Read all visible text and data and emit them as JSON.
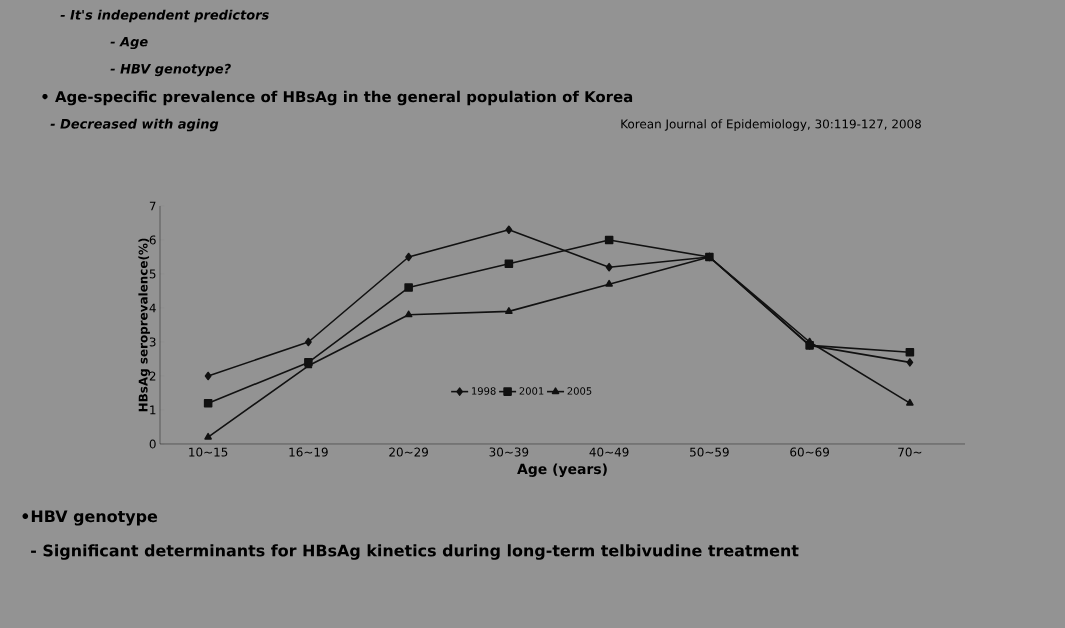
{
  "chart_data": {
    "type": "line",
    "xlabel": "Age (years)",
    "ylabel": "HBsAg seroprevalence(%)",
    "categories": [
      "10~15",
      "16~19",
      "20~29",
      "30~39",
      "40~49",
      "50~59",
      "60~69",
      "70~"
    ],
    "series": [
      {
        "name": "1998",
        "color": "#111111",
        "marker": "diamond",
        "values": [
          2.0,
          3.0,
          5.5,
          6.3,
          5.2,
          5.5,
          2.9,
          2.4
        ]
      },
      {
        "name": "2001",
        "color": "#111111",
        "marker": "square",
        "values": [
          1.2,
          2.4,
          4.6,
          5.3,
          6.0,
          5.5,
          2.9,
          2.7
        ]
      },
      {
        "name": "2005",
        "color": "#111111",
        "marker": "triangle",
        "values": [
          0.2,
          2.3,
          3.8,
          3.9,
          4.7,
          5.5,
          3.0,
          1.2
        ]
      }
    ],
    "ylim": [
      0,
      7
    ],
    "yticks": [
      0,
      1,
      2,
      3,
      4,
      5,
      6,
      7
    ],
    "grid": false,
    "legend": "bottom",
    "annotations": [
      "- It's independent predictors",
      "- Age",
      "- HBV genotype?",
      "• Age-specific prevalence of HBsAg in the general population of Korea",
      "- Decreased with aging",
      "Korean Journal of Epidemiology, 30:119-127, 2008",
      "•HBV genotype",
      "- Significant determinants for HBsAg kinetics during long-term telbivudine treatment"
    ]
  }
}
